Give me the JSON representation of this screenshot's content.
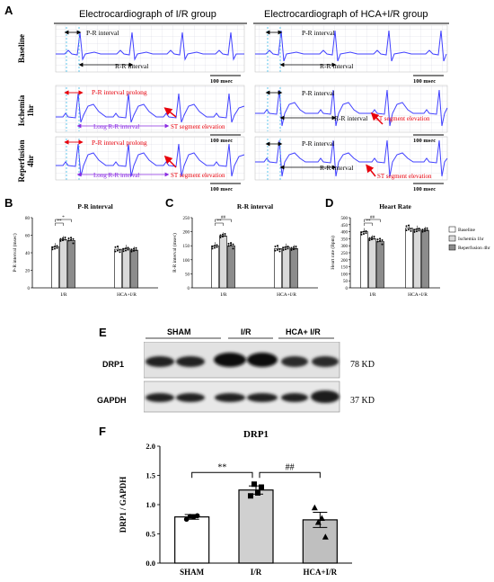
{
  "panels": {
    "A": "A",
    "B": "B",
    "C": "C",
    "D": "D",
    "E": "E",
    "F": "F"
  },
  "ecg": {
    "left_title": "Electrocardiograph of  I/R group",
    "right_title": "Electrocardiograph of  HCA+I/R group",
    "rows": [
      {
        "label_line1": "Baseline",
        "label_line2": ""
      },
      {
        "label_line1": "Ischemia",
        "label_line2": "1hr"
      },
      {
        "label_line1": "Reperfusion",
        "label_line2": "4hr"
      }
    ],
    "scale_bar": "100 msec",
    "pr_interval": "P-R interval",
    "rr_interval": "R-R interval",
    "pr_prolong": "P-R interval prolong",
    "long_rr": "Long R-R interval",
    "st_elevation": "ST segment elevation",
    "st_elevation_hca": "ST segment elevation"
  },
  "colors": {
    "ecg_trace": "#4040ff",
    "annotation_red": "#e8000b",
    "annotation_purple": "#8a2be2",
    "grid": "#c8c8d8"
  },
  "chart_data": [
    {
      "type": "bar",
      "title": "P-R interval",
      "ylabel": "P-R interval (msec)",
      "categories": [
        "I/R",
        "HCA+I/R"
      ],
      "ylim": [
        0,
        80
      ],
      "yticks": [
        0,
        20,
        40,
        60,
        80
      ],
      "series": [
        {
          "name": "Baseline",
          "values": [
            47,
            44
          ]
        },
        {
          "name": "Ischemia 1hr",
          "values": [
            55,
            45
          ]
        },
        {
          "name": "Reperfusion 4hr",
          "values": [
            54,
            43
          ]
        }
      ],
      "significance": [
        "**",
        "*"
      ]
    },
    {
      "type": "bar",
      "title": "R-R interval",
      "ylabel": "R-R interval (msec)",
      "categories": [
        "I/R",
        "HCA+I/R"
      ],
      "ylim": [
        0,
        250
      ],
      "yticks": [
        0,
        50,
        100,
        150,
        200,
        250
      ],
      "series": [
        {
          "name": "Baseline",
          "values": [
            150,
            140
          ]
        },
        {
          "name": "Ischemia 1hr",
          "values": [
            185,
            145
          ]
        },
        {
          "name": "Reperfusion 4hr",
          "values": [
            150,
            140
          ]
        }
      ],
      "significance": [
        "**",
        "##"
      ]
    },
    {
      "type": "bar",
      "title": "Heart Rate",
      "ylabel": "Heart rate (Bpm)",
      "categories": [
        "I/R",
        "HCA+I/R"
      ],
      "ylim": [
        0,
        500
      ],
      "yticks": [
        0,
        50,
        100,
        150,
        200,
        250,
        300,
        350,
        400,
        450,
        500
      ],
      "series": [
        {
          "name": "Baseline",
          "values": [
            400,
            425
          ]
        },
        {
          "name": "Ischemia 1hr",
          "values": [
            350,
            418
          ]
        },
        {
          "name": "Reperfusion 4hr",
          "values": [
            330,
            410
          ]
        }
      ],
      "significance": [
        "**",
        "##"
      ],
      "legend": [
        "Baseline",
        "Ischemia 1hr",
        "Reperfusion 4hr"
      ]
    },
    {
      "type": "bar",
      "title": "DRP1",
      "ylabel": "DRP1 / GAPDH",
      "categories": [
        "SHAM",
        "I/R",
        "HCA+I/R"
      ],
      "values": [
        0.79,
        1.25,
        0.74
      ],
      "errors": [
        0.04,
        0.07,
        0.13
      ],
      "ylim": [
        0,
        2.0
      ],
      "yticks": [
        "0.0",
        "0.5",
        "1.0",
        "1.5",
        "2.0"
      ],
      "points": [
        [
          0.75,
          0.8,
          0.79,
          0.81
        ],
        [
          1.15,
          1.35,
          1.2,
          1.3
        ],
        [
          0.95,
          0.7,
          0.77,
          0.45
        ]
      ],
      "significance": [
        "**",
        "##"
      ]
    }
  ],
  "western": {
    "groups": [
      "SHAM",
      "I/R",
      "HCA+ I/R"
    ],
    "proteins": [
      {
        "name": "DRP1",
        "kd": "78 KD"
      },
      {
        "name": "GAPDH",
        "kd": "37 KD"
      }
    ]
  }
}
